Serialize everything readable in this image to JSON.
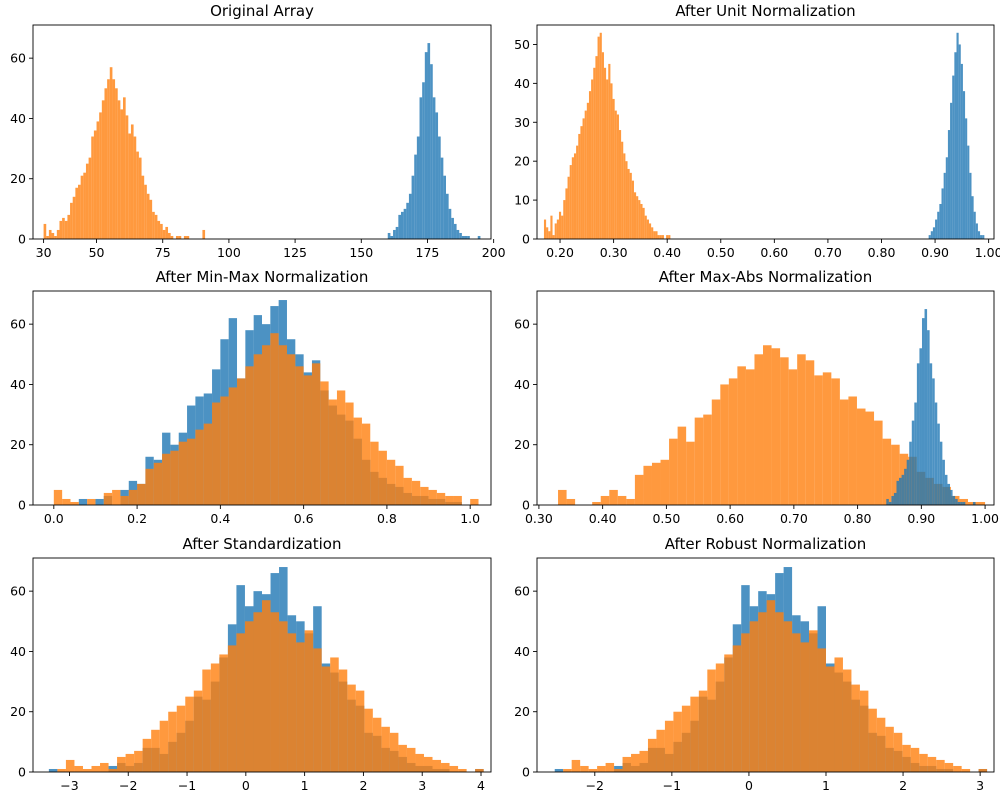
{
  "figure": {
    "background": "#ffffff"
  },
  "colors": {
    "series_a": "#1f77b4",
    "series_b": "#ff7f0e"
  },
  "chart_data": [
    {
      "type": "bar",
      "title": "Original Array",
      "xlim": [
        26,
        199
      ],
      "ylim": [
        0,
        71
      ],
      "xticks": [
        30,
        50,
        75,
        100,
        125,
        150,
        175,
        200
      ],
      "yticks": [
        0,
        20,
        40,
        60
      ],
      "series": [
        {
          "color": "#1f77b4",
          "x0": 160,
          "bin_width": 1,
          "values": [
            2,
            1,
            3,
            4,
            8,
            9,
            10,
            12,
            15,
            21,
            28,
            34,
            47,
            52,
            62,
            65,
            58,
            47,
            42,
            34,
            27,
            21,
            15,
            10,
            7,
            5,
            3,
            2,
            1,
            1,
            1,
            0,
            0,
            0,
            1
          ]
        },
        {
          "color": "#ff7f0e",
          "x0": 30,
          "bin_width": 1,
          "values": [
            5,
            1,
            3,
            2,
            1,
            3,
            6,
            7,
            6,
            8,
            12,
            14,
            17,
            18,
            21,
            22,
            25,
            27,
            34,
            36,
            39,
            42,
            46,
            50,
            53,
            57,
            53,
            50,
            46,
            43,
            47,
            41,
            35,
            38,
            34,
            29,
            27,
            21,
            18,
            15,
            13,
            9,
            8,
            6,
            5,
            3,
            4,
            2,
            1,
            0,
            1,
            1,
            0,
            1,
            1,
            0,
            0,
            0,
            0,
            0,
            3
          ]
        }
      ]
    },
    {
      "type": "bar",
      "title": "After Unit Normalization",
      "xlim": [
        0.157,
        1.01
      ],
      "ylim": [
        0,
        55
      ],
      "xticks": [
        0.2,
        0.3,
        0.4,
        0.5,
        0.6,
        0.7,
        0.8,
        0.9,
        1.0
      ],
      "yticks": [
        0,
        10,
        20,
        30,
        40,
        50
      ],
      "series": [
        {
          "color": "#1f77b4",
          "x0": 0.888,
          "bin_width": 0.004,
          "values": [
            1,
            2,
            3,
            5,
            7,
            9,
            13,
            17,
            21,
            28,
            35,
            42,
            48,
            53,
            50,
            45,
            38,
            31,
            24,
            17,
            11,
            7,
            4,
            2,
            1,
            1
          ]
        },
        {
          "color": "#ff7f0e",
          "x0": 0.17,
          "bin_width": 0.004,
          "values": [
            5,
            3,
            2,
            6,
            1,
            4,
            5,
            7,
            6,
            10,
            13,
            16,
            19,
            21,
            22,
            24,
            27,
            29,
            31,
            33,
            35,
            38,
            41,
            44,
            47,
            52,
            53,
            48,
            44,
            41,
            45,
            40,
            36,
            33,
            32,
            28,
            25,
            22,
            20,
            18,
            17,
            15,
            12,
            11,
            10,
            9,
            8,
            6,
            5,
            4,
            3,
            2,
            2,
            1,
            1,
            1,
            0,
            1,
            1
          ]
        }
      ]
    },
    {
      "type": "bar",
      "title": "After Min-Max Normalization",
      "xlim": [
        -0.05,
        1.05
      ],
      "ylim": [
        0,
        71
      ],
      "xticks": [
        0.0,
        0.2,
        0.4,
        0.6,
        0.8,
        1.0
      ],
      "yticks": [
        0,
        20,
        40,
        60
      ],
      "series": [
        {
          "color": "#1f77b4",
          "x0": 0.0,
          "bin_width": 0.02,
          "values": [
            0,
            0,
            0,
            2,
            0,
            2,
            3,
            0,
            5,
            8,
            7,
            16,
            15,
            24,
            20,
            24,
            33,
            36,
            37,
            45,
            55,
            62,
            42,
            58,
            63,
            60,
            66,
            68,
            55,
            50,
            44,
            48,
            38,
            33,
            30,
            28,
            22,
            15,
            11,
            9,
            7,
            6,
            4,
            3,
            3,
            2,
            2,
            1,
            1,
            0
          ]
        },
        {
          "color": "#ff7f0e",
          "x0": 0.0,
          "bin_width": 0.02,
          "values": [
            5,
            2,
            1,
            0,
            2,
            0,
            4,
            5,
            3,
            5,
            7,
            12,
            14,
            17,
            18,
            21,
            22,
            25,
            27,
            34,
            36,
            39,
            42,
            46,
            50,
            53,
            57,
            53,
            50,
            46,
            43,
            47,
            41,
            35,
            38,
            34,
            29,
            27,
            21,
            18,
            15,
            13,
            9,
            8,
            6,
            5,
            4,
            3,
            3,
            0,
            2
          ]
        }
      ]
    },
    {
      "type": "bar",
      "title": "After Max-Abs Normalization",
      "xlim": [
        0.297,
        1.014
      ],
      "ylim": [
        0,
        71
      ],
      "xticks": [
        0.3,
        0.4,
        0.5,
        0.6,
        0.7,
        0.8,
        0.9,
        1.0
      ],
      "yticks": [
        0,
        20,
        40,
        60
      ],
      "series": [
        {
          "color": "#ff7f0e",
          "x0": 0.33,
          "bin_width": 0.0134,
          "values": [
            5,
            2,
            0,
            0,
            1,
            3,
            5,
            3,
            2,
            10,
            13,
            14,
            15,
            22,
            26,
            21,
            29,
            30,
            35,
            40,
            42,
            46,
            45,
            50,
            53,
            52,
            49,
            45,
            50,
            48,
            43,
            44,
            42,
            35,
            36,
            32,
            31,
            28,
            22,
            20,
            17,
            16,
            11,
            9,
            7,
            6,
            3,
            2,
            1,
            1
          ]
        },
        {
          "color": "#1f77b4",
          "x0": 0.845,
          "bin_width": 0.004,
          "values": [
            2,
            1,
            3,
            4,
            8,
            9,
            10,
            12,
            15,
            21,
            28,
            34,
            47,
            52,
            62,
            65,
            58,
            47,
            42,
            34,
            27,
            21,
            15,
            10,
            7,
            5,
            3,
            2,
            1,
            1,
            1,
            0,
            0,
            0,
            1
          ]
        }
      ]
    },
    {
      "type": "bar",
      "title": "After Standardization",
      "xlim": [
        -3.62,
        4.17
      ],
      "ylim": [
        0,
        71
      ],
      "xticks": [
        -3,
        -2,
        -1,
        0,
        1,
        2,
        3,
        4
      ],
      "yticks": [
        0,
        20,
        40,
        60
      ],
      "series": [
        {
          "color": "#1f77b4",
          "x0": -3.35,
          "bin_width": 0.145,
          "values": [
            1,
            0,
            0,
            0,
            0,
            0,
            0,
            2,
            3,
            2,
            3,
            8,
            8,
            6,
            10,
            13,
            17,
            25,
            24,
            30,
            38,
            49,
            62,
            55,
            60,
            59,
            66,
            68,
            52,
            50,
            46,
            55,
            36,
            33,
            30,
            24,
            22,
            13,
            12,
            8,
            7,
            5,
            3,
            2,
            2,
            1,
            1,
            0,
            0,
            0,
            1
          ]
        },
        {
          "color": "#ff7f0e",
          "x0": -3.35,
          "bin_width": 0.145,
          "values": [
            0,
            1,
            4,
            2,
            1,
            2,
            3,
            1,
            5,
            6,
            7,
            11,
            14,
            17,
            20,
            22,
            25,
            27,
            34,
            36,
            39,
            42,
            46,
            50,
            53,
            57,
            53,
            50,
            46,
            43,
            47,
            41,
            35,
            38,
            34,
            29,
            27,
            21,
            18,
            15,
            13,
            9,
            8,
            6,
            5,
            4,
            3,
            2,
            1,
            0,
            1
          ]
        }
      ]
    },
    {
      "type": "bar",
      "title": "After Robust Normalization",
      "xlim": [
        -2.75,
        3.18
      ],
      "ylim": [
        0,
        71
      ],
      "xticks": [
        -2,
        -1,
        0,
        1,
        2,
        3
      ],
      "yticks": [
        0,
        20,
        40,
        60
      ],
      "series": [
        {
          "color": "#1f77b4",
          "x0": -2.52,
          "bin_width": 0.11,
          "values": [
            1,
            0,
            0,
            0,
            0,
            0,
            0,
            2,
            3,
            2,
            3,
            8,
            8,
            6,
            10,
            13,
            17,
            25,
            24,
            30,
            38,
            49,
            62,
            55,
            60,
            59,
            66,
            68,
            52,
            50,
            46,
            55,
            36,
            33,
            30,
            24,
            22,
            13,
            12,
            8,
            7,
            5,
            3,
            2,
            2,
            1,
            1,
            0,
            0,
            0,
            1
          ]
        },
        {
          "color": "#ff7f0e",
          "x0": -2.52,
          "bin_width": 0.11,
          "values": [
            0,
            1,
            4,
            2,
            1,
            2,
            3,
            1,
            5,
            6,
            7,
            11,
            14,
            17,
            20,
            22,
            25,
            27,
            34,
            36,
            39,
            42,
            46,
            50,
            53,
            57,
            53,
            50,
            46,
            43,
            47,
            41,
            35,
            38,
            34,
            29,
            27,
            21,
            18,
            15,
            13,
            9,
            8,
            6,
            5,
            4,
            3,
            2,
            1,
            0,
            1
          ]
        }
      ]
    }
  ]
}
